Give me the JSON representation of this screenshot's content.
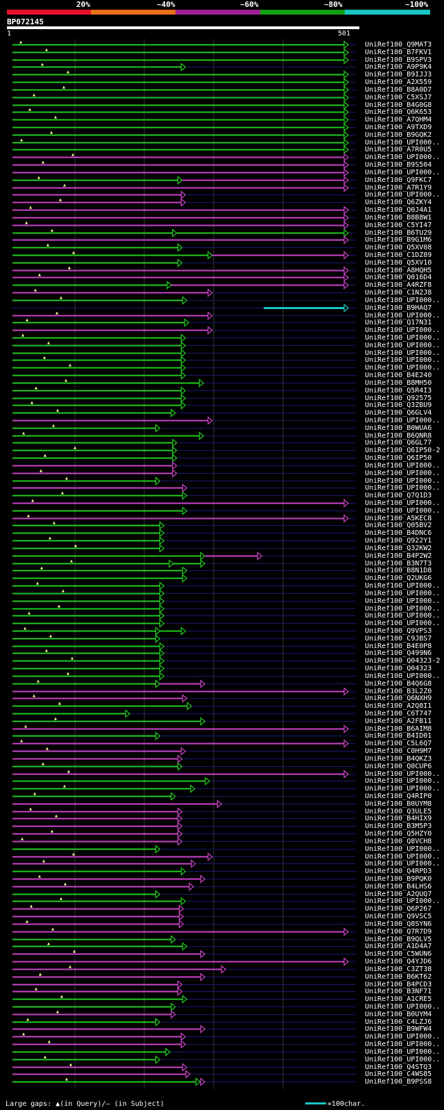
{
  "legend": {
    "labels": [
      "20%",
      "~40%",
      "~60%",
      "~80%",
      "~100%"
    ],
    "colors": [
      "#e8102a",
      "#e8701a",
      "#a0209a",
      "#10a010",
      "#19c6c6"
    ]
  },
  "query": {
    "id": "BP072145",
    "start": "1",
    "end": "501",
    "length": 501
  },
  "footer": {
    "gaps_text": "Large gaps: ▲(in Query)/– (in Subject)",
    "scale_text": "=100char."
  },
  "colors": {
    "green": "#22cc22",
    "magenta": "#cc44cc",
    "cyan": "#19c6c6",
    "gap": "#ffff99",
    "grid": "#3a3a3a",
    "row": "#1a1a70"
  },
  "chart_data": {
    "type": "alignment-overview",
    "query_length": 501,
    "hits": [
      {
        "name": "UniRef100_Q9MAT3",
        "end": 501,
        "color": "green"
      },
      {
        "name": "UniRef100_B7FKV1",
        "end": 501,
        "color": "green"
      },
      {
        "name": "UniRef100_B9SPV3",
        "end": 501,
        "color": "green"
      },
      {
        "name": "UniRef100_A9P9K4",
        "end": 258,
        "color": "green"
      },
      {
        "name": "UniRef100_B9IJJ3",
        "end": 501,
        "color": "green"
      },
      {
        "name": "UniRef100_A2X559",
        "end": 501,
        "color": "green"
      },
      {
        "name": "UniRef100_B8A0D7",
        "end": 501,
        "color": "green"
      },
      {
        "name": "UniRef100_C5XSJ7",
        "end": 501,
        "color": "green"
      },
      {
        "name": "UniRef100_B4G0G8",
        "end": 501,
        "color": "green"
      },
      {
        "name": "UniRef100_Q6K653",
        "end": 501,
        "color": "green"
      },
      {
        "name": "UniRef100_A7QHM4",
        "end": 501,
        "color": "green"
      },
      {
        "name": "UniRef100_A9TXD9",
        "end": 501,
        "color": "green"
      },
      {
        "name": "UniRef100_B9GQK2",
        "end": 501,
        "color": "green"
      },
      {
        "name": "UniRef100_UPI000..",
        "end": 501,
        "color": "green"
      },
      {
        "name": "UniRef100_A7R0U5",
        "end": 501,
        "color": "green"
      },
      {
        "name": "UniRef100_UPI000..",
        "end": 501,
        "color": "magenta"
      },
      {
        "name": "UniRef100_B9S504",
        "end": 501,
        "color": "magenta"
      },
      {
        "name": "UniRef100_UPI000..",
        "end": 501,
        "color": "magenta"
      },
      {
        "name": "UniRef100_Q9FKC7",
        "end": 253,
        "color": "green",
        "end2": 501,
        "color2": "magenta"
      },
      {
        "name": "UniRef100_A7R1Y9",
        "end": 501,
        "color": "magenta"
      },
      {
        "name": "UniRef100_UPI000..",
        "end": 258,
        "color": "magenta"
      },
      {
        "name": "UniRef100_Q6ZKY4",
        "end": 258,
        "color": "magenta"
      },
      {
        "name": "UniRef100_Q0J4A1",
        "end": 501,
        "color": "magenta"
      },
      {
        "name": "UniRef100_B8B8W1",
        "end": 501,
        "color": "magenta"
      },
      {
        "name": "UniRef100_C5YI47",
        "end": 501,
        "color": "magenta"
      },
      {
        "name": "UniRef100_B6TU29",
        "end": 245,
        "color": "green",
        "end2": 501,
        "color2": "green"
      },
      {
        "name": "UniRef100_B9G1M6",
        "end": 501,
        "color": "magenta"
      },
      {
        "name": "UniRef100_Q5XV08",
        "end": 253,
        "color": "green"
      },
      {
        "name": "UniRef100_C1DZ89",
        "end": 298,
        "color": "green",
        "end2": 501,
        "color2": "magenta"
      },
      {
        "name": "UniRef100_Q5XV10",
        "end": 253,
        "color": "green"
      },
      {
        "name": "UniRef100_A8HQH5",
        "end": 501,
        "color": "magenta"
      },
      {
        "name": "UniRef100_Q016D4",
        "end": 501,
        "color": "magenta"
      },
      {
        "name": "UniRef100_A4RZF8",
        "end": 237,
        "color": "green",
        "end2": 501,
        "color2": "magenta"
      },
      {
        "name": "UniRef100_C1N2J8",
        "end": 298,
        "color": "magenta"
      },
      {
        "name": "UniRef100_UPI000..",
        "end": 260,
        "color": "green"
      },
      {
        "name": "UniRef100_B9HAQ7",
        "start": 375,
        "end": 501,
        "color": "cyan"
      },
      {
        "name": "UniRef100_UPI000..",
        "end": 298,
        "color": "magenta"
      },
      {
        "name": "UniRef100_Q17N31",
        "end": 263,
        "color": "green"
      },
      {
        "name": "UniRef100_UPI000..",
        "end": 298,
        "color": "magenta"
      },
      {
        "name": "UniRef100_UPI000..",
        "end": 258,
        "color": "green"
      },
      {
        "name": "UniRef100_UPI000..",
        "end": 258,
        "color": "green"
      },
      {
        "name": "UniRef100_UPI000..",
        "end": 258,
        "color": "green"
      },
      {
        "name": "UniRef100_UPI000..",
        "end": 258,
        "color": "green"
      },
      {
        "name": "UniRef100_UPI000..",
        "end": 258,
        "color": "green"
      },
      {
        "name": "UniRef100_B4E240",
        "end": 258,
        "color": "green"
      },
      {
        "name": "UniRef100_B8MH50",
        "end": 285,
        "color": "green"
      },
      {
        "name": "UniRef100_Q5R4I3",
        "end": 258,
        "color": "green"
      },
      {
        "name": "UniRef100_Q92575",
        "end": 258,
        "color": "green"
      },
      {
        "name": "UniRef100_Q3ZBU9",
        "end": 258,
        "color": "green"
      },
      {
        "name": "UniRef100_Q6GLV4",
        "end": 243,
        "color": "green"
      },
      {
        "name": "UniRef100_UPI000..",
        "end": 298,
        "color": "magenta"
      },
      {
        "name": "UniRef100_B0WUA6",
        "end": 220,
        "color": "green"
      },
      {
        "name": "UniRef100_B6QNR8",
        "end": 285,
        "color": "green"
      },
      {
        "name": "UniRef100_Q6GL77",
        "end": 245,
        "color": "green"
      },
      {
        "name": "UniRef100_Q6IP50-2",
        "end": 245,
        "color": "green"
      },
      {
        "name": "UniRef100_Q6IP50",
        "end": 245,
        "color": "green"
      },
      {
        "name": "UniRef100_UPI000..",
        "end": 245,
        "color": "magenta"
      },
      {
        "name": "UniRef100_UPI000..",
        "end": 245,
        "color": "magenta"
      },
      {
        "name": "UniRef100_UPI000..",
        "end": 220,
        "color": "green"
      },
      {
        "name": "UniRef100_UPI000..",
        "end": 260,
        "color": "magenta"
      },
      {
        "name": "UniRef100_Q7Q1D3",
        "end": 260,
        "color": "green"
      },
      {
        "name": "UniRef100_UPI000..",
        "end": 501,
        "color": "magenta"
      },
      {
        "name": "UniRef100_UPI000..",
        "end": 260,
        "color": "green"
      },
      {
        "name": "UniRef100_A5KEC8",
        "end": 501,
        "color": "magenta"
      },
      {
        "name": "UniRef100_Q05BV2",
        "end": 226,
        "color": "green"
      },
      {
        "name": "UniRef100_B4DNC6",
        "end": 226,
        "color": "green"
      },
      {
        "name": "UniRef100_Q922Y1",
        "end": 226,
        "color": "green"
      },
      {
        "name": "UniRef100_Q32KW2",
        "end": 226,
        "color": "green"
      },
      {
        "name": "UniRef100_B4P2W2",
        "end": 287,
        "color": "green",
        "end2": 372,
        "color2": "magenta"
      },
      {
        "name": "UniRef100_B3N7T3",
        "end": 240,
        "color": "green",
        "end2": 287,
        "color2": "green"
      },
      {
        "name": "UniRef100_B8N1D8",
        "end": 260,
        "color": "green"
      },
      {
        "name": "UniRef100_Q2UKG6",
        "end": 260,
        "color": "green"
      },
      {
        "name": "UniRef100_UPI000..",
        "end": 226,
        "color": "green"
      },
      {
        "name": "UniRef100_UPI000..",
        "end": 226,
        "color": "green"
      },
      {
        "name": "UniRef100_UPI000..",
        "end": 226,
        "color": "green"
      },
      {
        "name": "UniRef100_UPI000..",
        "end": 226,
        "color": "green"
      },
      {
        "name": "UniRef100_UPI000..",
        "end": 226,
        "color": "green"
      },
      {
        "name": "UniRef100_UPI000..",
        "end": 226,
        "color": "green"
      },
      {
        "name": "UniRef100_Q9VPS3",
        "end": 220,
        "color": "green",
        "end2": 258,
        "color2": "green"
      },
      {
        "name": "UniRef100_C9JBS7",
        "end": 220,
        "color": "green"
      },
      {
        "name": "UniRef100_B4E0P8",
        "end": 226,
        "color": "green"
      },
      {
        "name": "UniRef100_Q499N6",
        "end": 226,
        "color": "green"
      },
      {
        "name": "UniRef100_Q04323-2",
        "end": 226,
        "color": "green"
      },
      {
        "name": "UniRef100_Q04323",
        "end": 226,
        "color": "green"
      },
      {
        "name": "UniRef100_UPI000..",
        "end": 226,
        "color": "green"
      },
      {
        "name": "UniRef100_B4Q6G8",
        "end": 220,
        "color": "green",
        "end2": 287,
        "color2": "magenta"
      },
      {
        "name": "UniRef100_B3L2Z0",
        "end": 501,
        "color": "magenta"
      },
      {
        "name": "UniRef100_Q6NXH9",
        "end": 260,
        "color": "magenta"
      },
      {
        "name": "UniRef100_A2Q8I1",
        "end": 267,
        "color": "green"
      },
      {
        "name": "UniRef100_C6T747",
        "end": 175,
        "color": "green"
      },
      {
        "name": "UniRef100_A2FB11",
        "end": 287,
        "color": "green"
      },
      {
        "name": "UniRef100_B6AIM8",
        "end": 501,
        "color": "magenta"
      },
      {
        "name": "UniRef100_B4ID01",
        "end": 220,
        "color": "green"
      },
      {
        "name": "UniRef100_C5L6Q7",
        "end": 501,
        "color": "magenta"
      },
      {
        "name": "UniRef100_C0H9M7",
        "end": 258,
        "color": "magenta"
      },
      {
        "name": "UniRef100_B4QKZ3",
        "end": 253,
        "color": "magenta"
      },
      {
        "name": "UniRef100_Q0CUP6",
        "end": 253,
        "color": "green"
      },
      {
        "name": "UniRef100_UPI000..",
        "end": 501,
        "color": "magenta"
      },
      {
        "name": "UniRef100_UPI000..",
        "end": 294,
        "color": "green"
      },
      {
        "name": "UniRef100_UPI000..",
        "end": 272,
        "color": "green"
      },
      {
        "name": "UniRef100_Q4RIP0",
        "end": 243,
        "color": "green"
      },
      {
        "name": "UniRef100_B0UYM8",
        "end": 312,
        "color": "magenta"
      },
      {
        "name": "UniRef100_Q3ULE5",
        "end": 253,
        "color": "magenta"
      },
      {
        "name": "UniRef100_B4HIX9",
        "end": 253,
        "color": "magenta"
      },
      {
        "name": "UniRef100_B3M5P3",
        "end": 253,
        "color": "magenta"
      },
      {
        "name": "UniRef100_Q5HZY0",
        "end": 253,
        "color": "magenta"
      },
      {
        "name": "UniRef100_Q8VCH8",
        "end": 253,
        "color": "magenta"
      },
      {
        "name": "UniRef100_UPI000..",
        "end": 220,
        "color": "green"
      },
      {
        "name": "UniRef100_UPI000..",
        "end": 298,
        "color": "magenta"
      },
      {
        "name": "UniRef100_UPI000..",
        "end": 273,
        "color": "magenta"
      },
      {
        "name": "UniRef100_Q4RPD3",
        "end": 258,
        "color": "green"
      },
      {
        "name": "UniRef100_B9PQK0",
        "end": 287,
        "color": "magenta"
      },
      {
        "name": "UniRef100_B4LHS6",
        "end": 270,
        "color": "magenta"
      },
      {
        "name": "UniRef100_A2QUQ7",
        "end": 220,
        "color": "green"
      },
      {
        "name": "UniRef100_UPI000..",
        "end": 258,
        "color": "green"
      },
      {
        "name": "UniRef100_Q6P267",
        "end": 255,
        "color": "magenta"
      },
      {
        "name": "UniRef100_Q9VSC5",
        "end": 255,
        "color": "magenta"
      },
      {
        "name": "UniRef100_Q8SYN6",
        "end": 255,
        "color": "magenta"
      },
      {
        "name": "UniRef100_Q7R7D9",
        "end": 501,
        "color": "magenta"
      },
      {
        "name": "UniRef100_B9QLV5",
        "end": 243,
        "color": "green"
      },
      {
        "name": "UniRef100_A1D4A7",
        "end": 260,
        "color": "green"
      },
      {
        "name": "UniRef100_C5WUN6",
        "end": 287,
        "color": "magenta"
      },
      {
        "name": "UniRef100_Q4YJD6",
        "end": 501,
        "color": "magenta"
      },
      {
        "name": "UniRef100_C3ZT38",
        "end": 318,
        "color": "magenta"
      },
      {
        "name": "UniRef100_B6KT62",
        "end": 287,
        "color": "magenta"
      },
      {
        "name": "UniRef100_B4PCD3",
        "end": 253,
        "color": "magenta"
      },
      {
        "name": "UniRef100_B3NF71",
        "end": 253,
        "color": "magenta"
      },
      {
        "name": "UniRef100_A1CRE5",
        "end": 260,
        "color": "green"
      },
      {
        "name": "UniRef100_UPI000..",
        "end": 243,
        "color": "green"
      },
      {
        "name": "UniRef100_B0UYM4",
        "end": 243,
        "color": "magenta"
      },
      {
        "name": "UniRef100_C4LZJ6",
        "end": 220,
        "color": "green"
      },
      {
        "name": "UniRef100_B9WFW4",
        "end": 287,
        "color": "magenta"
      },
      {
        "name": "UniRef100_UPI000..",
        "end": 258,
        "color": "magenta"
      },
      {
        "name": "UniRef100_UPI000..",
        "end": 258,
        "color": "magenta"
      },
      {
        "name": "UniRef100_UPI000..",
        "end": 235,
        "color": "green"
      },
      {
        "name": "UniRef100_UPI000..",
        "end": 220,
        "color": "green"
      },
      {
        "name": "UniRef100_Q4STQ3",
        "end": 260,
        "color": "magenta"
      },
      {
        "name": "UniRef100_C4WS85",
        "end": 265,
        "color": "magenta"
      },
      {
        "name": "UniRef100_B9PSS8",
        "end": 280,
        "color": "green",
        "end2": 287,
        "color2": "magenta"
      }
    ]
  }
}
